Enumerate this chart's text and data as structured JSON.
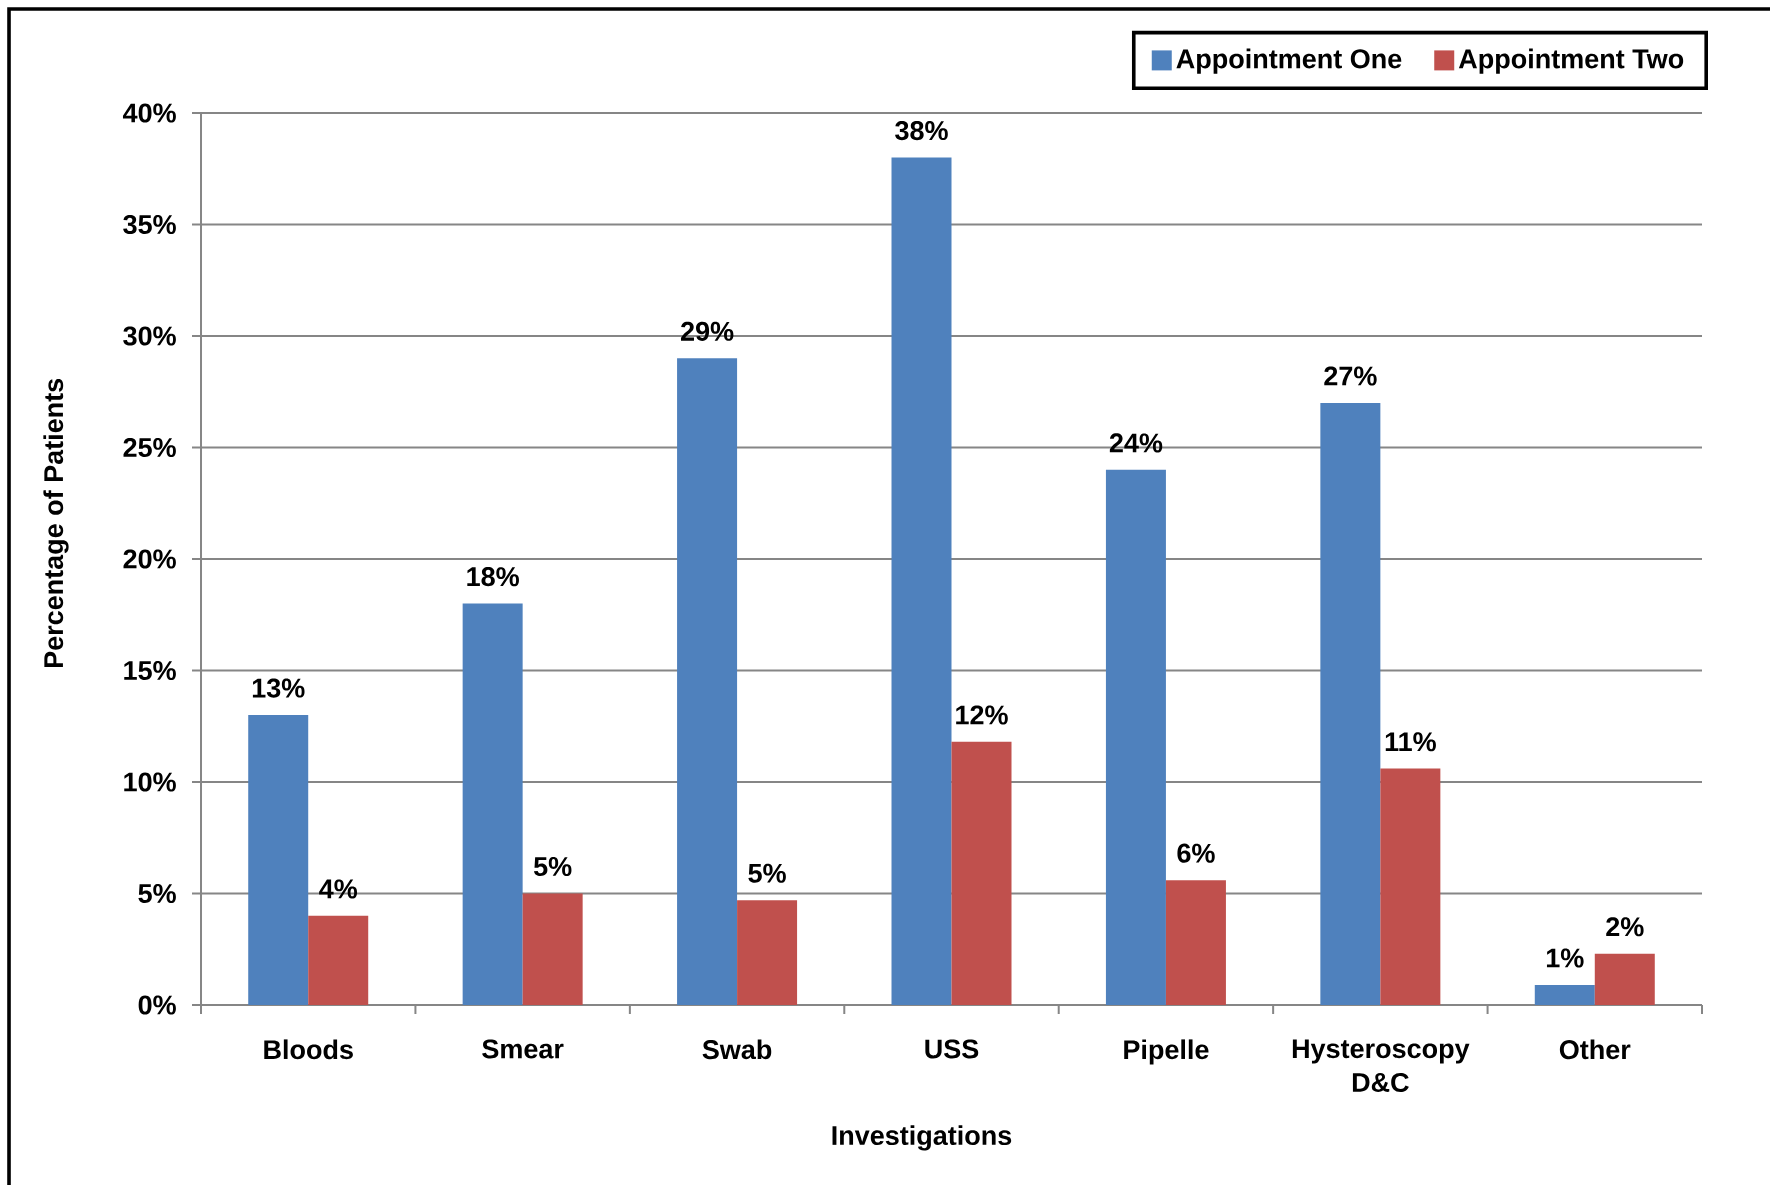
{
  "chart_data": {
    "type": "bar",
    "xlabel": "Investigations",
    "ylabel": "Percentage of Patients",
    "categories": [
      "Bloods",
      "Smear",
      "Swab",
      "USS",
      "Pipelle",
      "Hysteroscopy D&C",
      "Other"
    ],
    "series": [
      {
        "name": "Appointment One",
        "color": "#4f81bd",
        "values": [
          13,
          18,
          29,
          38,
          24,
          27,
          0.9
        ],
        "value_labels": [
          "13%",
          "18%",
          "29%",
          "38%",
          "24%",
          "27%",
          "1%"
        ]
      },
      {
        "name": "Appointment Two",
        "color": "#c0504d",
        "values": [
          4.0,
          5.0,
          4.7,
          11.8,
          5.6,
          10.6,
          2.3
        ],
        "value_labels": [
          "4%",
          "5%",
          "5%",
          "12%",
          "6%",
          "11%",
          "2%"
        ]
      }
    ],
    "ylim": [
      0,
      40
    ],
    "yticks": [
      {
        "value": 0,
        "label": "0%"
      },
      {
        "value": 5,
        "label": "5%"
      },
      {
        "value": 10,
        "label": "10%"
      },
      {
        "value": 15,
        "label": "15%"
      },
      {
        "value": 20,
        "label": "20%"
      },
      {
        "value": 25,
        "label": "25%"
      },
      {
        "value": 30,
        "label": "30%"
      },
      {
        "value": 35,
        "label": "35%"
      },
      {
        "value": 40,
        "label": "40%"
      }
    ],
    "grid": "y",
    "legend": "top right"
  }
}
